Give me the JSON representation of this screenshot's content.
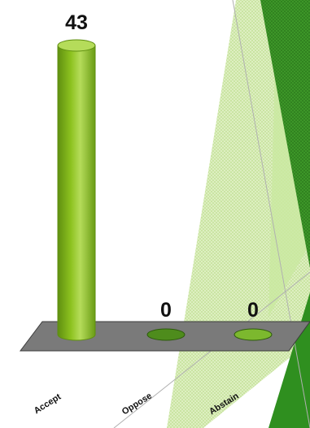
{
  "chart_data": {
    "type": "bar",
    "categories": [
      "Accept",
      "Oppose",
      "Abstain"
    ],
    "values": [
      43,
      0,
      0
    ],
    "data_labels": [
      "43",
      "0",
      "0"
    ],
    "ylim": [
      0,
      43
    ],
    "colors": {
      "bar_fill": "#8dc21f",
      "bar_dark": "#5f8f10",
      "bar_light": "#b5dc5a",
      "zero_fills": [
        "#8dc21f",
        "#4e8c1c",
        "#7cb82e"
      ],
      "floor": "#7a7a7a",
      "floor_edge": "#3c3c3c",
      "decor_green": "#2f8f1f",
      "decor_light": "#c9e8a0"
    },
    "grid": false,
    "legend": "none"
  }
}
